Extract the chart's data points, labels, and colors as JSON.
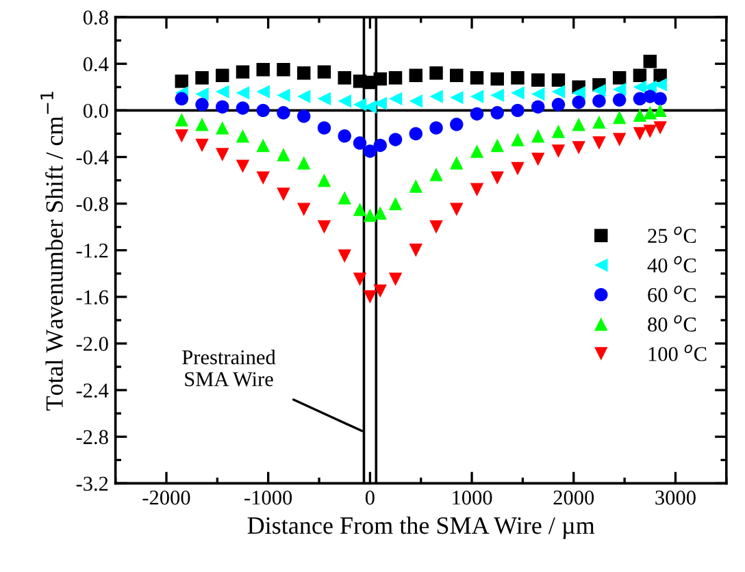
{
  "chart_data": {
    "type": "scatter",
    "xlabel": "Distance From the SMA Wire / µm",
    "ylabel": "Total Wavenumber Shift / cm$^{−1}$",
    "x": [
      -1850,
      -1650,
      -1450,
      -1250,
      -1050,
      -850,
      -650,
      -450,
      -250,
      -100,
      0,
      100,
      250,
      450,
      650,
      850,
      1050,
      1250,
      1450,
      1650,
      1850,
      2050,
      2250,
      2450,
      2650,
      2750,
      2850
    ],
    "series": [
      {
        "name": "25 $^{o}$C",
        "color": "#000000",
        "marker": "square",
        "values": [
          0.25,
          0.28,
          0.3,
          0.33,
          0.35,
          0.35,
          0.32,
          0.33,
          0.28,
          0.25,
          0.24,
          0.27,
          0.28,
          0.3,
          0.32,
          0.3,
          0.28,
          0.27,
          0.28,
          0.26,
          0.26,
          0.2,
          0.22,
          0.28,
          0.3,
          0.42,
          0.3
        ]
      },
      {
        "name": "40 $^{o}$C",
        "color": "#00ffff",
        "marker": "triangle-left",
        "values": [
          0.15,
          0.14,
          0.16,
          0.15,
          0.16,
          0.13,
          0.12,
          0.1,
          0.08,
          0.05,
          0.03,
          0.06,
          0.1,
          0.08,
          0.12,
          0.11,
          0.12,
          0.13,
          0.15,
          0.14,
          0.16,
          0.15,
          0.17,
          0.18,
          0.2,
          0.2,
          0.22
        ]
      },
      {
        "name": "60 $^{o}$C",
        "color": "#0000ff",
        "marker": "circle",
        "values": [
          0.1,
          0.05,
          0.03,
          0.02,
          0.0,
          -0.02,
          -0.05,
          -0.15,
          -0.22,
          -0.28,
          -0.35,
          -0.3,
          -0.25,
          -0.2,
          -0.15,
          -0.12,
          -0.03,
          -0.02,
          0.0,
          0.03,
          0.05,
          0.07,
          0.08,
          0.09,
          0.1,
          0.12,
          0.1
        ]
      },
      {
        "name": "80 $^{o}$C",
        "color": "#00ff00",
        "marker": "triangle",
        "values": [
          -0.08,
          -0.12,
          -0.15,
          -0.22,
          -0.3,
          -0.38,
          -0.45,
          -0.6,
          -0.75,
          -0.85,
          -0.9,
          -0.88,
          -0.8,
          -0.65,
          -0.55,
          -0.45,
          -0.35,
          -0.3,
          -0.25,
          -0.22,
          -0.18,
          -0.12,
          -0.1,
          -0.06,
          -0.04,
          -0.02,
          0.0
        ]
      },
      {
        "name": "100 $^{o}$C",
        "color": "#ff0000",
        "marker": "triangle-down",
        "values": [
          -0.22,
          -0.3,
          -0.38,
          -0.48,
          -0.58,
          -0.72,
          -0.85,
          -1.0,
          -1.25,
          -1.45,
          -1.6,
          -1.55,
          -1.45,
          -1.2,
          -1.0,
          -0.85,
          -0.68,
          -0.58,
          -0.5,
          -0.42,
          -0.35,
          -0.32,
          -0.28,
          -0.25,
          -0.2,
          -0.18,
          -0.15
        ]
      }
    ],
    "xlim": [
      -2500,
      3500
    ],
    "xticks": [
      {
        "value": -2000,
        "label": "-2000"
      },
      {
        "value": -1000,
        "label": "-1000"
      },
      0,
      1000,
      2000,
      3000
    ],
    "ylim": [
      -3.2,
      0.8
    ],
    "yticks": [
      {
        "value": -3.2,
        "label": "-3.2"
      },
      {
        "value": -2.8,
        "label": "-2.8"
      },
      {
        "value": -2.4,
        "label": "-2.4"
      },
      {
        "value": -2.0,
        "label": "-2.0"
      },
      {
        "value": -1.6,
        "label": "-1.6"
      },
      {
        "value": -1.2,
        "label": "-1.2"
      },
      {
        "value": -0.8,
        "label": "-0.8"
      },
      {
        "value": -0.4,
        "label": "-0.4"
      },
      {
        "value": 0.0,
        "label": "0.0"
      },
      {
        "value": 0.4,
        "label": "0.4"
      },
      {
        "value": 0.8,
        "label": "0.8"
      }
    ],
    "ref_lines": [
      {
        "axis": "x",
        "value": -60
      },
      {
        "axis": "x",
        "value": 60
      },
      {
        "axis": "y",
        "value": 0
      }
    ],
    "annotations": [
      {
        "text": "Prestrained\nSMA Wire",
        "x": -80,
        "y": -2.75
      }
    ],
    "grid": false,
    "legend": "right"
  }
}
